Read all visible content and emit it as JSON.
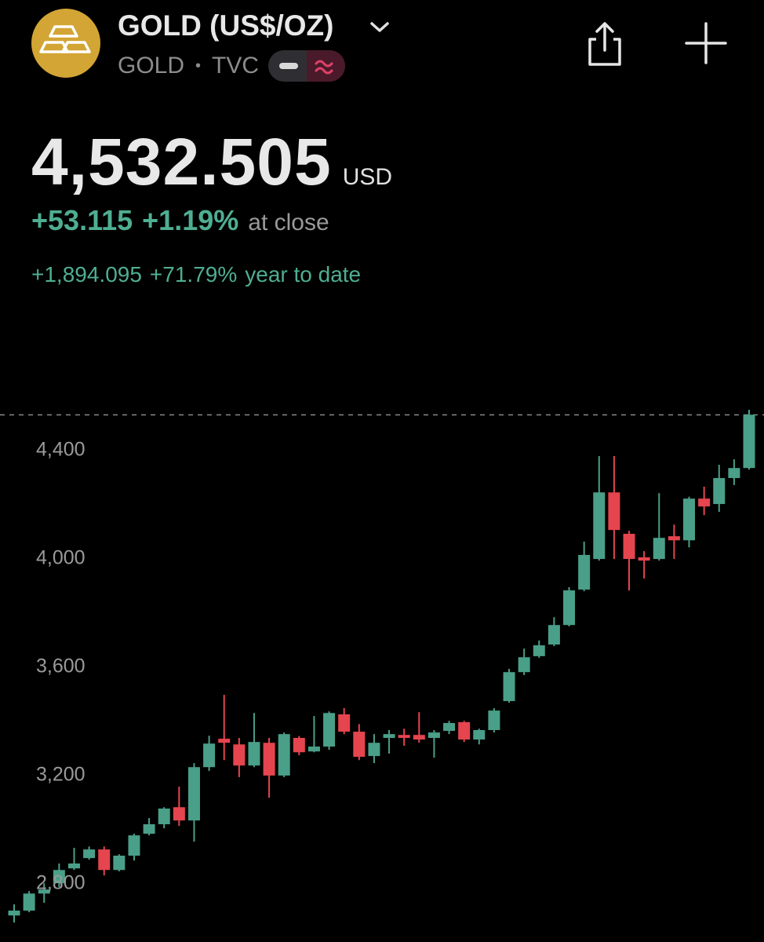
{
  "header": {
    "title": "GOLD (US$/OZ)",
    "symbol": "GOLD",
    "separator": "•",
    "exchange": "TVC"
  },
  "quote": {
    "price": "4,532.505",
    "currency": "USD",
    "change": "+53.115",
    "change_pct": "+1.19%",
    "session": "at close",
    "ytd_change": "+1,894.095",
    "ytd_pct": "+71.79%",
    "ytd_label": "year to date"
  },
  "chart_data": {
    "type": "candlestick",
    "open": [
      2683,
      2701,
      2764,
      2802,
      2857,
      2895,
      2927,
      2851,
      2904,
      2985,
      3020,
      3083,
      3034,
      3231,
      3336,
      3315,
      3237,
      3321,
      3200,
      3339,
      3289,
      3307,
      3426,
      3362,
      3272,
      3339,
      3350,
      3350,
      3339,
      3365,
      3397,
      3333,
      3368,
      3475,
      3582,
      3641,
      3684,
      3756,
      3887,
      4000,
      4246,
      4093,
      4006,
      4000,
      4084,
      4069,
      4223,
      4203,
      4299,
      4336
    ],
    "high": [
      2724,
      2773,
      2802,
      2875,
      2933,
      2938,
      2938,
      2909,
      2985,
      3043,
      3083,
      3159,
      3246,
      3347,
      3498,
      3339,
      3431,
      3339,
      3359,
      3346,
      3420,
      3437,
      3449,
      3390,
      3353,
      3368,
      3373,
      3434,
      3368,
      3402,
      3402,
      3373,
      3449,
      3594,
      3669,
      3699,
      3785,
      3896,
      4064,
      4380,
      4380,
      4104,
      4029,
      4243,
      4127,
      4230,
      4267,
      4348,
      4368,
      4551
    ],
    "low": [
      2657,
      2695,
      2730,
      2788,
      2851,
      2889,
      2831,
      2846,
      2886,
      2979,
      3005,
      3014,
      2956,
      3217,
      3257,
      3194,
      3231,
      3118,
      3194,
      3275,
      3286,
      3295,
      3353,
      3257,
      3246,
      3281,
      3310,
      3321,
      3266,
      3353,
      3324,
      3315,
      3359,
      3469,
      3571,
      3635,
      3678,
      3751,
      3881,
      3994,
      4000,
      3884,
      3928,
      3994,
      4000,
      4043,
      4162,
      4174,
      4273,
      4330
    ],
    "close": [
      2701,
      2764,
      2779,
      2851,
      2875,
      2927,
      2851,
      2904,
      2979,
      3020,
      3078,
      3034,
      3231,
      3318,
      3321,
      3237,
      3324,
      3200,
      3353,
      3286,
      3307,
      3431,
      3362,
      3269,
      3321,
      3353,
      3339,
      3333,
      3359,
      3394,
      3333,
      3368,
      3440,
      3582,
      3637,
      3681,
      3756,
      3884,
      4015,
      4246,
      4107,
      4000,
      3994,
      4078,
      4069,
      4223,
      4194,
      4299,
      4336,
      4533
    ],
    "up_color": "#4a9f88",
    "down_color": "#e5454e",
    "price_line": 4532.505,
    "ylim": [
      2585,
      4615
    ],
    "yticks": [
      {
        "value": 2800,
        "label": "2,800"
      },
      {
        "value": 3200,
        "label": "3,200"
      },
      {
        "value": 3600,
        "label": "3,600"
      },
      {
        "value": 4000,
        "label": "4,000"
      },
      {
        "value": 4400,
        "label": "4,400"
      }
    ]
  }
}
